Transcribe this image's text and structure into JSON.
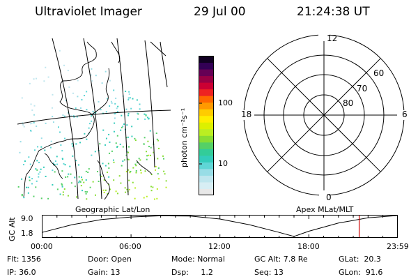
{
  "header": {
    "title": "Ultraviolet Imager",
    "date": "29 Jul 00",
    "time": "21:24:38 UT"
  },
  "colorbar": {
    "unit_label": "photon cm⁻²s⁻¹",
    "ticks": [
      "100",
      "10"
    ],
    "colors": [
      "#e8e8e8",
      "#d7eef4",
      "#bfe6ee",
      "#98dde6",
      "#5fd6d6",
      "#33ccbb",
      "#33cc99",
      "#55d066",
      "#88dd33",
      "#bbee22",
      "#ddf000",
      "#ffee00",
      "#ffcc00",
      "#ff9900",
      "#ff6600",
      "#ee2222",
      "#cc0033",
      "#990044",
      "#660055",
      "#330055",
      "#110022"
    ]
  },
  "geo_panel": {
    "label": "Geographic Lat/Lon",
    "description_icon": "coastline-map"
  },
  "polar_panel": {
    "label": "Apex MLat/MLT",
    "mlt_labels": {
      "top": "12",
      "left": "18",
      "right": "6",
      "bottom": "0"
    },
    "lat_labels": [
      "60",
      "70",
      "80"
    ]
  },
  "orbit_plot": {
    "ylabel": "GC Alt",
    "yticks": [
      "9.0",
      "1.8"
    ],
    "xticks": [
      "00:00",
      "06:00",
      "12:00",
      "18:00",
      "23:59"
    ],
    "marker_color": "#cc0000"
  },
  "chart_data": {
    "type": "line",
    "title": "",
    "xlabel": "",
    "ylabel": "GC Alt",
    "x": [
      "00:00",
      "02:00",
      "04:00",
      "06:00",
      "08:00",
      "10:00",
      "12:00",
      "14:00",
      "16:00",
      "17:00",
      "18:00",
      "20:00",
      "22:00",
      "23:59"
    ],
    "series": [
      {
        "values": [
          3.2,
          5.8,
          7.6,
          8.5,
          8.9,
          8.8,
          7.8,
          5.8,
          3.2,
          1.8,
          3.6,
          6.4,
          8.2,
          9.0
        ]
      }
    ],
    "ylim": [
      1.8,
      9.0
    ],
    "marker_x": "21:24"
  },
  "status": {
    "flt": "Flt: 1356",
    "ip": "IP: 36.0",
    "door": "Door: Open",
    "gain": "Gain: 13",
    "mode": "Mode: Normal",
    "dsp": "Dsp:     1.2",
    "gc_alt": "GC Alt: 7.8 Re",
    "seq": "Seq: 13",
    "glat": "GLat:  20.3",
    "glon": "GLon:  91.6"
  }
}
